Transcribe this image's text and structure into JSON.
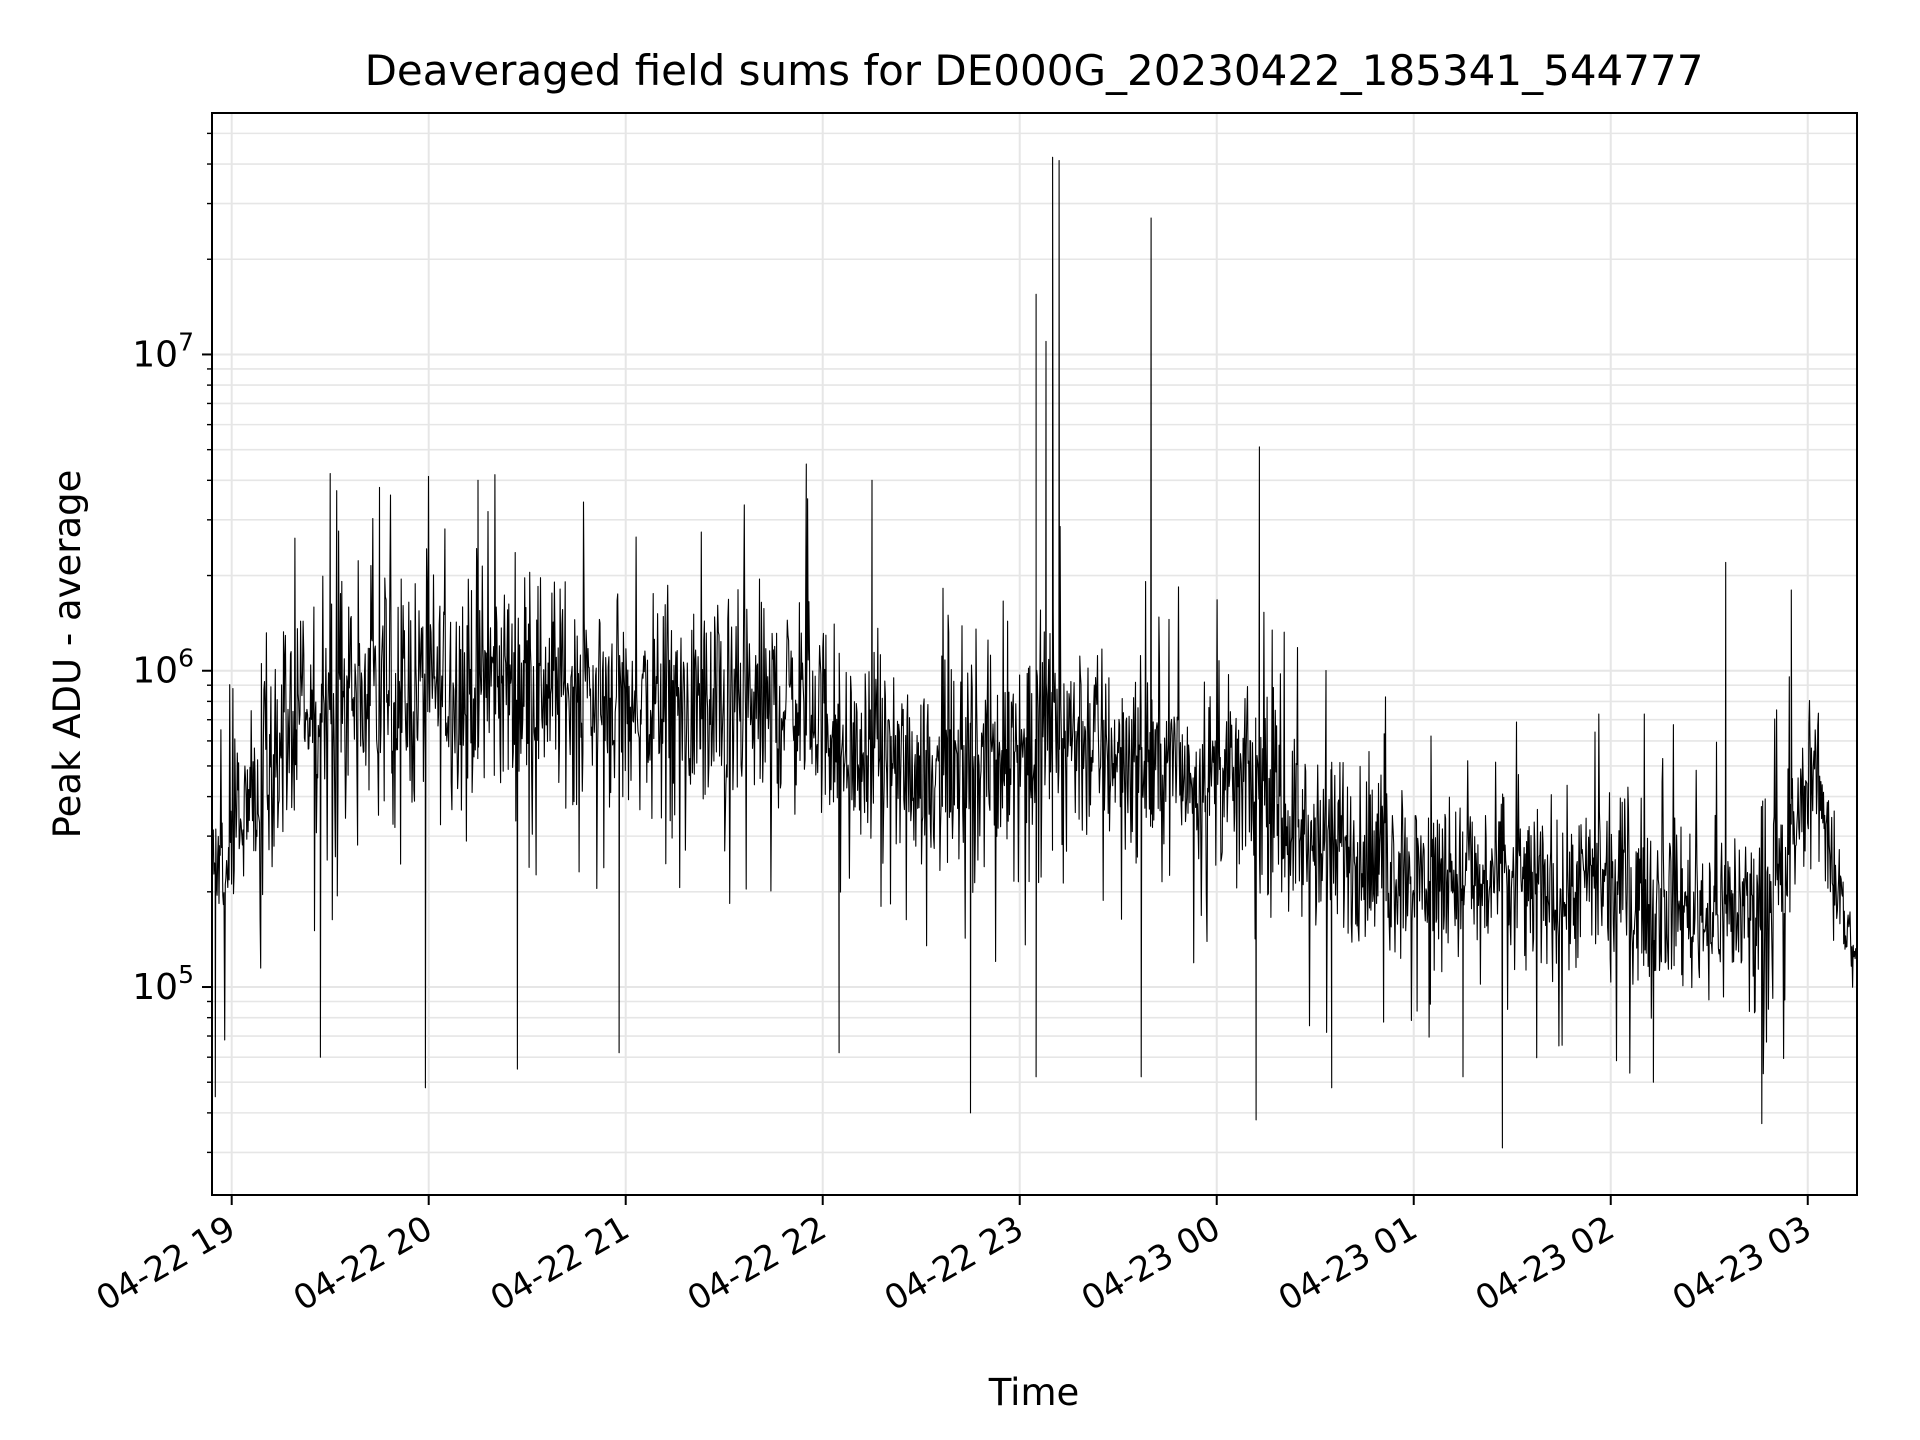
{
  "chart_data": {
    "type": "line",
    "title": "Deaveraged field sums for DE000G_20230422_185341_544777",
    "xlabel": "Time",
    "ylabel": "Peak ADU - average",
    "yscale": "log",
    "ylim": [
      22000,
      58000000
    ],
    "xlim": [
      "2023-04-22 18:54",
      "2023-04-23 03:15"
    ],
    "grid": true,
    "legend": "none",
    "line_color": "#000000",
    "grid_color": "#e6e6e6",
    "x_ticks": [
      {
        "t": "2023-04-22 19:00",
        "label": "04-22 19"
      },
      {
        "t": "2023-04-22 20:00",
        "label": "04-22 20"
      },
      {
        "t": "2023-04-22 21:00",
        "label": "04-22 21"
      },
      {
        "t": "2023-04-22 22:00",
        "label": "04-22 22"
      },
      {
        "t": "2023-04-22 23:00",
        "label": "04-22 23"
      },
      {
        "t": "2023-04-23 00:00",
        "label": "04-23 00"
      },
      {
        "t": "2023-04-23 01:00",
        "label": "04-23 01"
      },
      {
        "t": "2023-04-23 02:00",
        "label": "04-23 02"
      },
      {
        "t": "2023-04-23 03:00",
        "label": "04-23 03"
      }
    ],
    "y_ticks": [
      {
        "value": 100000,
        "base": "10",
        "exp": "5"
      },
      {
        "value": 1000000,
        "base": "10",
        "exp": "6"
      },
      {
        "value": 10000000,
        "base": "10",
        "exp": "7"
      }
    ],
    "envelope": [
      {
        "t": "2023-04-22 18:54",
        "lo": 120000,
        "hi": 380000
      },
      {
        "t": "2023-04-22 19:10",
        "lo": 250000,
        "hi": 1100000
      },
      {
        "t": "2023-04-22 19:30",
        "lo": 350000,
        "hi": 1700000
      },
      {
        "t": "2023-04-22 20:00",
        "lo": 400000,
        "hi": 1900000
      },
      {
        "t": "2023-04-22 20:30",
        "lo": 450000,
        "hi": 2000000
      },
      {
        "t": "2023-04-22 21:00",
        "lo": 400000,
        "hi": 1600000
      },
      {
        "t": "2023-04-22 21:30",
        "lo": 350000,
        "hi": 1500000
      },
      {
        "t": "2023-04-22 21:55",
        "lo": 400000,
        "hi": 1700000
      },
      {
        "t": "2023-04-22 22:10",
        "lo": 300000,
        "hi": 900000
      },
      {
        "t": "2023-04-22 22:45",
        "lo": 250000,
        "hi": 900000
      },
      {
        "t": "2023-04-22 23:10",
        "lo": 300000,
        "hi": 1500000
      },
      {
        "t": "2023-04-22 23:40",
        "lo": 280000,
        "hi": 900000
      },
      {
        "t": "2023-04-23 00:10",
        "lo": 250000,
        "hi": 800000
      },
      {
        "t": "2023-04-23 00:30",
        "lo": 150000,
        "hi": 500000
      },
      {
        "t": "2023-04-23 01:00",
        "lo": 130000,
        "hi": 400000
      },
      {
        "t": "2023-04-23 01:30",
        "lo": 120000,
        "hi": 380000
      },
      {
        "t": "2023-04-23 02:00",
        "lo": 120000,
        "hi": 350000
      },
      {
        "t": "2023-04-23 02:30",
        "lo": 100000,
        "hi": 300000
      },
      {
        "t": "2023-04-23 02:50",
        "lo": 100000,
        "hi": 350000
      },
      {
        "t": "2023-04-23 03:02",
        "lo": 350000,
        "hi": 750000
      },
      {
        "t": "2023-04-23 03:08",
        "lo": 150000,
        "hi": 400000
      },
      {
        "t": "2023-04-23 03:15",
        "lo": 90000,
        "hi": 130000
      }
    ],
    "spikes": [
      {
        "t": "2023-04-22 19:30",
        "value": 4200000
      },
      {
        "t": "2023-04-22 19:45",
        "value": 3800000
      },
      {
        "t": "2023-04-22 20:15",
        "value": 4000000
      },
      {
        "t": "2023-04-22 21:55",
        "value": 4500000
      },
      {
        "t": "2023-04-22 22:15",
        "value": 4000000
      },
      {
        "t": "2023-04-22 23:05",
        "value": 15500000
      },
      {
        "t": "2023-04-22 23:08",
        "value": 11000000
      },
      {
        "t": "2023-04-22 23:10",
        "value": 42000000
      },
      {
        "t": "2023-04-22 23:12",
        "value": 41000000
      },
      {
        "t": "2023-04-22 23:40",
        "value": 27000000
      },
      {
        "t": "2023-04-23 00:13",
        "value": 5100000
      },
      {
        "t": "2023-04-23 02:35",
        "value": 2200000
      },
      {
        "t": "2023-04-23 02:55",
        "value": 1800000
      }
    ],
    "dips": [
      {
        "t": "2023-04-22 18:55",
        "value": 45000
      },
      {
        "t": "2023-04-22 19:27",
        "value": 60000
      },
      {
        "t": "2023-04-22 19:59",
        "value": 48000
      },
      {
        "t": "2023-04-22 20:27",
        "value": 55000
      },
      {
        "t": "2023-04-22 20:58",
        "value": 62000
      },
      {
        "t": "2023-04-22 22:05",
        "value": 62000
      },
      {
        "t": "2023-04-22 22:45",
        "value": 40000
      },
      {
        "t": "2023-04-22 23:05",
        "value": 52000
      },
      {
        "t": "2023-04-22 23:37",
        "value": 52000
      },
      {
        "t": "2023-04-23 00:12",
        "value": 38000
      },
      {
        "t": "2023-04-23 00:35",
        "value": 48000
      },
      {
        "t": "2023-04-23 01:15",
        "value": 52000
      },
      {
        "t": "2023-04-23 01:27",
        "value": 31000
      },
      {
        "t": "2023-04-23 02:13",
        "value": 50000
      },
      {
        "t": "2023-04-23 02:46",
        "value": 37000
      }
    ]
  }
}
